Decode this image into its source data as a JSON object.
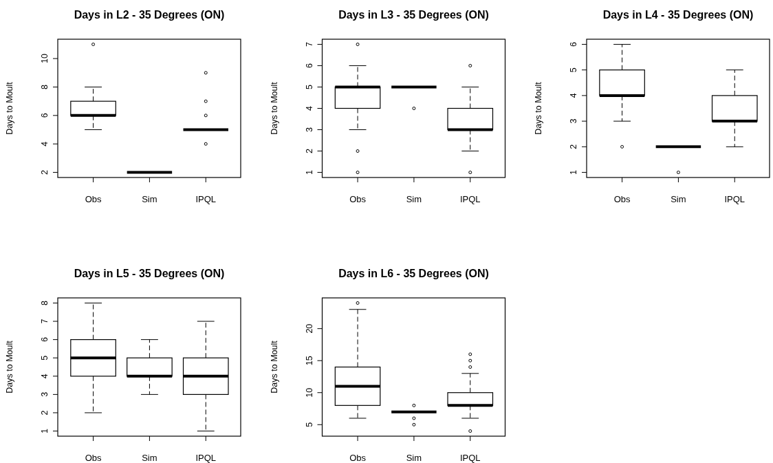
{
  "chart_data": [
    {
      "type": "box",
      "title": "Days in L2 - 35 Degrees (ON)",
      "ylabel": "Days to Moult",
      "categories": [
        "Obs",
        "Sim",
        "IPQL"
      ],
      "ylim": [
        1.64,
        11.36
      ],
      "yticks": [
        2,
        4,
        6,
        8,
        10
      ],
      "marker": "circle",
      "boxes": [
        {
          "low": 5,
          "q1": 6,
          "median": 6,
          "q3": 7,
          "high": 8,
          "outliers": [
            11
          ]
        },
        {
          "low": 2,
          "q1": 2,
          "median": 2,
          "q3": 2,
          "high": 2
        },
        {
          "low": 5,
          "q1": 5,
          "median": 5,
          "q3": 5,
          "high": 5,
          "outliers": [
            4,
            6,
            7,
            9
          ]
        }
      ]
    },
    {
      "type": "box",
      "title": "Days in L3 - 35 Degrees (ON)",
      "ylabel": "Days to Moult",
      "categories": [
        "Obs",
        "Sim",
        "IPQL"
      ],
      "ylim": [
        0.76,
        7.24
      ],
      "yticks": [
        1,
        2,
        3,
        4,
        5,
        6,
        7
      ],
      "marker": "circle",
      "boxes": [
        {
          "low": 3,
          "q1": 4,
          "median": 5,
          "q3": 5,
          "high": 6,
          "outliers": [
            1,
            2,
            7
          ]
        },
        {
          "low": 5,
          "q1": 5,
          "median": 5,
          "q3": 5,
          "high": 5,
          "outliers": [
            4
          ]
        },
        {
          "low": 2,
          "q1": 3,
          "median": 3,
          "q3": 4,
          "high": 5,
          "outliers": [
            1,
            6
          ]
        }
      ]
    },
    {
      "type": "box",
      "title": "Days in L4 - 35 Degrees (ON)",
      "ylabel": "Days to Moult",
      "categories": [
        "Obs",
        "Sim",
        "IPQL"
      ],
      "ylim": [
        0.8,
        6.2
      ],
      "yticks": [
        1,
        2,
        3,
        4,
        5,
        6
      ],
      "marker": "circle",
      "boxes": [
        {
          "low": 3,
          "q1": 4,
          "median": 4,
          "q3": 5,
          "high": 6,
          "outliers": [
            2
          ]
        },
        {
          "low": 2,
          "q1": 2,
          "median": 2,
          "q3": 2,
          "high": 2,
          "outliers": [
            1
          ]
        },
        {
          "low": 2,
          "q1": 3,
          "median": 3,
          "q3": 4,
          "high": 5
        }
      ]
    },
    {
      "type": "box",
      "title": "Days in L5 - 35 Degrees (ON)",
      "ylabel": "Days to Moult",
      "categories": [
        "Obs",
        "Sim",
        "IPQL"
      ],
      "ylim": [
        0.72,
        8.28
      ],
      "yticks": [
        1,
        2,
        3,
        4,
        5,
        6,
        7,
        8
      ],
      "marker": "circle",
      "boxes": [
        {
          "low": 2,
          "q1": 4,
          "median": 5,
          "q3": 6,
          "high": 8
        },
        {
          "low": 3,
          "q1": 4,
          "median": 4,
          "q3": 5,
          "high": 6
        },
        {
          "low": 1,
          "q1": 3,
          "median": 4,
          "q3": 5,
          "high": 7
        }
      ]
    },
    {
      "type": "box",
      "title": "Days in L6 - 35 Degrees (ON)",
      "ylabel": "Days to Moult",
      "categories": [
        "Obs",
        "Sim",
        "IPQL"
      ],
      "ylim": [
        3.2,
        24.8
      ],
      "yticks": [
        5,
        10,
        15,
        20
      ],
      "marker": "circle",
      "boxes": [
        {
          "low": 6,
          "q1": 8,
          "median": 11,
          "q3": 14,
          "high": 23,
          "outliers": [
            24
          ]
        },
        {
          "low": 7,
          "q1": 7,
          "median": 7,
          "q3": 7,
          "high": 7,
          "outliers": [
            5,
            6,
            8
          ]
        },
        {
          "low": 6,
          "q1": 8,
          "median": 8,
          "q3": 10,
          "high": 13,
          "outliers": [
            4,
            14,
            15,
            16
          ]
        }
      ]
    }
  ]
}
